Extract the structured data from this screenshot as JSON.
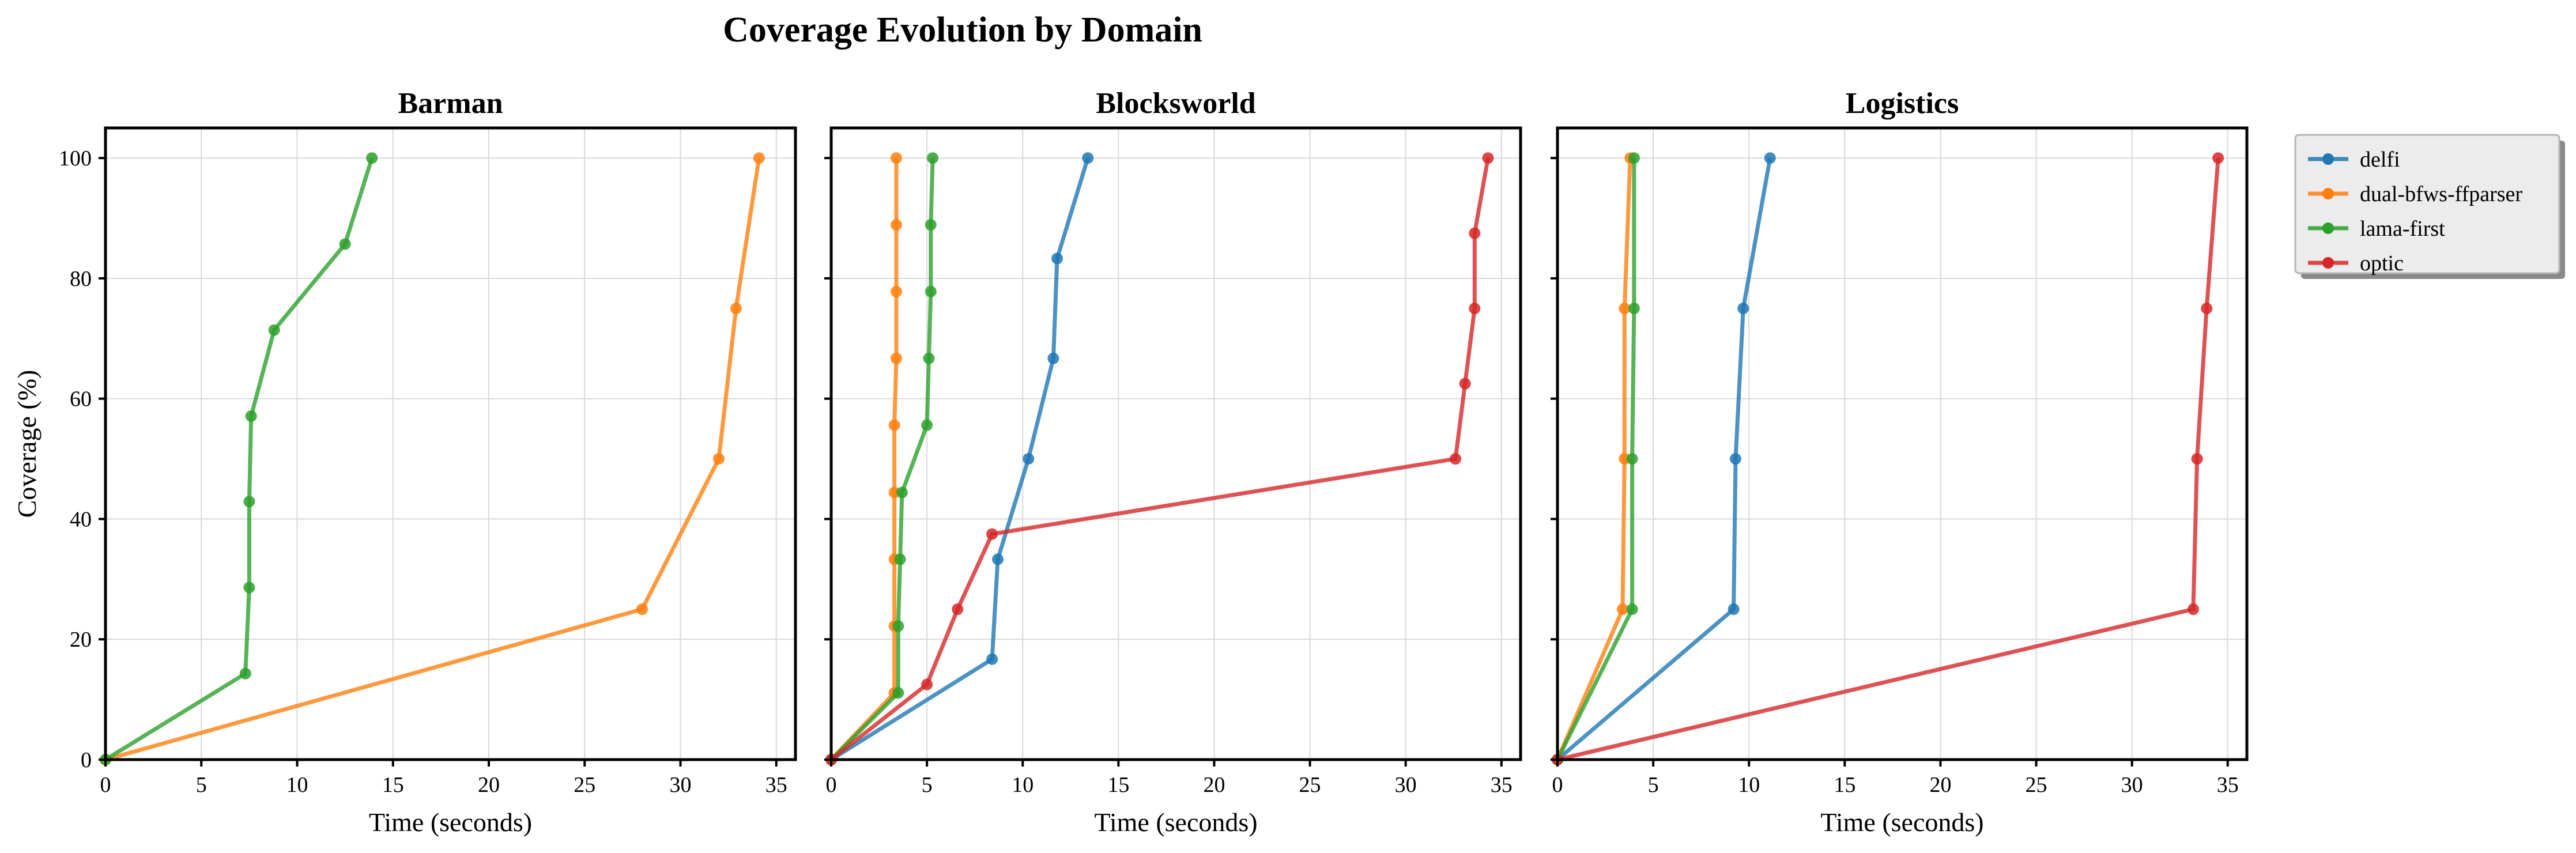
{
  "figure_title": "Coverage Evolution by Domain",
  "colors": {
    "delfi": "#1f77b4",
    "dual-bfws-ffparser": "#ff7f0e",
    "lama-first": "#2ca02c",
    "optic": "#d62728"
  },
  "legend": {
    "placement": "outside-right",
    "entries": [
      "delfi",
      "dual-bfws-ffparser",
      "lama-first",
      "optic"
    ]
  },
  "chart_data": [
    {
      "type": "line",
      "title": "Barman",
      "xlabel": "Time (seconds)",
      "ylabel": "Coverage (%)",
      "xlim": [
        0,
        36
      ],
      "ylim": [
        0,
        105
      ],
      "xticks": [
        0,
        5,
        10,
        15,
        20,
        25,
        30,
        35
      ],
      "yticks": [
        0,
        20,
        40,
        60,
        80,
        100
      ],
      "grid": true,
      "series": [
        {
          "name": "dual-bfws-ffparser",
          "x": [
            0,
            28.0,
            32.0,
            32.9,
            34.1
          ],
          "y": [
            0,
            25,
            50,
            75,
            100
          ]
        },
        {
          "name": "lama-first",
          "x": [
            0,
            7.3,
            7.5,
            7.5,
            7.6,
            8.8,
            12.5,
            13.9
          ],
          "y": [
            0,
            14.3,
            28.6,
            42.9,
            57.1,
            71.4,
            85.7,
            100
          ]
        }
      ]
    },
    {
      "type": "line",
      "title": "Blocksworld",
      "xlabel": "Time (seconds)",
      "ylabel": "",
      "xlim": [
        0,
        36
      ],
      "ylim": [
        0,
        105
      ],
      "xticks": [
        0,
        5,
        10,
        15,
        20,
        25,
        30,
        35
      ],
      "yticks": [
        0,
        20,
        40,
        60,
        80,
        100
      ],
      "grid": true,
      "series": [
        {
          "name": "delfi",
          "x": [
            0,
            8.4,
            8.7,
            10.3,
            11.6,
            11.8,
            13.4
          ],
          "y": [
            0,
            16.7,
            33.3,
            50,
            66.7,
            83.3,
            100
          ]
        },
        {
          "name": "dual-bfws-ffparser",
          "x": [
            0,
            3.3,
            3.3,
            3.3,
            3.3,
            3.3,
            3.4,
            3.4,
            3.4,
            3.4
          ],
          "y": [
            0,
            11.1,
            22.2,
            33.3,
            44.4,
            55.6,
            66.7,
            77.8,
            88.9,
            100
          ]
        },
        {
          "name": "lama-first",
          "x": [
            0,
            3.5,
            3.5,
            3.6,
            3.7,
            5.0,
            5.1,
            5.2,
            5.2,
            5.3
          ],
          "y": [
            0,
            11.1,
            22.2,
            33.3,
            44.4,
            55.6,
            66.7,
            77.8,
            88.9,
            100
          ]
        },
        {
          "name": "optic",
          "x": [
            0,
            5.0,
            6.6,
            8.4,
            32.6,
            33.1,
            33.6,
            33.6,
            34.3
          ],
          "y": [
            0,
            12.5,
            25,
            37.5,
            50,
            62.5,
            75,
            87.5,
            100
          ]
        }
      ]
    },
    {
      "type": "line",
      "title": "Logistics",
      "xlabel": "Time (seconds)",
      "ylabel": "",
      "xlim": [
        0,
        36
      ],
      "ylim": [
        0,
        105
      ],
      "xticks": [
        0,
        5,
        10,
        15,
        20,
        25,
        30,
        35
      ],
      "yticks": [
        0,
        20,
        40,
        60,
        80,
        100
      ],
      "grid": true,
      "series": [
        {
          "name": "delfi",
          "x": [
            0,
            9.2,
            9.3,
            9.7,
            11.1
          ],
          "y": [
            0,
            25,
            50,
            75,
            100
          ]
        },
        {
          "name": "dual-bfws-ffparser",
          "x": [
            0,
            3.4,
            3.5,
            3.5,
            3.8
          ],
          "y": [
            0,
            25,
            50,
            75,
            100
          ]
        },
        {
          "name": "lama-first",
          "x": [
            0,
            3.9,
            3.9,
            4.0,
            4.0
          ],
          "y": [
            0,
            25,
            50,
            75,
            100
          ]
        },
        {
          "name": "optic",
          "x": [
            0,
            33.2,
            33.4,
            33.9,
            34.5
          ],
          "y": [
            0,
            25,
            50,
            75,
            100
          ]
        }
      ]
    }
  ]
}
